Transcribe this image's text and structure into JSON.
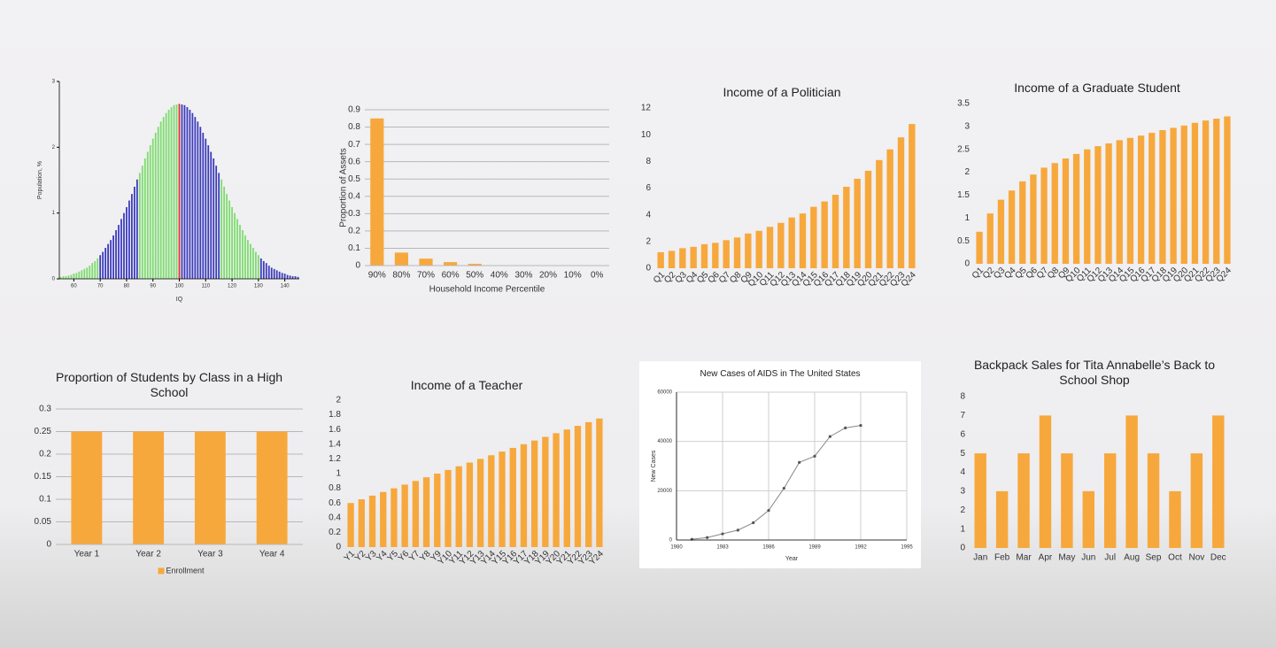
{
  "chart_data": [
    {
      "type": "bar",
      "xlabel": "IQ",
      "ylabel": "Population, %",
      "xlim": [
        54.5,
        145.5
      ],
      "xticks": [
        60,
        70,
        80,
        90,
        100,
        110,
        120,
        130,
        140
      ],
      "ylim": [
        0,
        3
      ],
      "yticks": [
        0,
        1,
        2,
        3
      ],
      "series": [
        {
          "color": "#7ddc6f",
          "x": [
            55,
            56,
            57,
            58,
            59,
            60,
            61,
            62,
            63,
            64,
            65,
            66,
            67,
            68,
            69,
            85,
            86,
            87,
            88,
            89,
            90,
            91,
            92,
            93,
            94,
            95,
            96,
            97,
            98,
            99,
            116,
            117,
            118,
            119,
            120,
            121,
            122,
            123,
            124,
            125,
            126,
            127,
            128,
            129,
            130
          ],
          "values": [
            0.03,
            0.04,
            0.04,
            0.05,
            0.06,
            0.08,
            0.09,
            0.11,
            0.13,
            0.15,
            0.17,
            0.2,
            0.24,
            0.27,
            0.31,
            1.61,
            1.72,
            1.83,
            1.93,
            2.03,
            2.13,
            2.22,
            2.31,
            2.39,
            2.46,
            2.52,
            2.57,
            2.61,
            2.64,
            2.65,
            1.51,
            1.4,
            1.29,
            1.19,
            1.09,
            1.0,
            0.91,
            0.82,
            0.74,
            0.66,
            0.59,
            0.53,
            0.47,
            0.41,
            0.36
          ]
        },
        {
          "color": "#3b3bbd",
          "x": [
            70,
            71,
            72,
            73,
            74,
            75,
            76,
            77,
            78,
            79,
            80,
            81,
            82,
            83,
            84,
            101,
            102,
            103,
            104,
            105,
            106,
            107,
            108,
            109,
            110,
            111,
            112,
            113,
            114,
            115,
            131,
            132,
            133,
            134,
            135,
            136,
            137,
            138,
            139,
            140,
            141,
            142,
            143,
            144,
            145
          ],
          "values": [
            0.36,
            0.41,
            0.47,
            0.53,
            0.59,
            0.66,
            0.74,
            0.82,
            0.91,
            1.0,
            1.09,
            1.19,
            1.29,
            1.4,
            1.51,
            2.65,
            2.64,
            2.61,
            2.57,
            2.52,
            2.46,
            2.39,
            2.31,
            2.22,
            2.13,
            2.03,
            1.93,
            1.83,
            1.72,
            1.61,
            0.31,
            0.27,
            0.24,
            0.2,
            0.17,
            0.15,
            0.13,
            0.11,
            0.09,
            0.08,
            0.06,
            0.05,
            0.04,
            0.04,
            0.03
          ]
        },
        {
          "color": "#e03030",
          "x": [
            100
          ],
          "values": [
            2.66
          ]
        }
      ]
    },
    {
      "type": "bar",
      "xlabel": "Household Income Percentile",
      "ylabel": "Proportion of Assets",
      "categories": [
        "90%",
        "80%",
        "70%",
        "60%",
        "50%",
        "40%",
        "30%",
        "20%",
        "10%",
        "0%"
      ],
      "values": [
        0.85,
        0.075,
        0.04,
        0.02,
        0.01,
        0,
        0,
        0,
        0,
        0
      ],
      "color": "#f7a83c",
      "ylim": [
        0,
        0.9
      ],
      "yticks": [
        0,
        0.1,
        0.2,
        0.3,
        0.4,
        0.5,
        0.6,
        0.7,
        0.8,
        0.9
      ],
      "grid": true
    },
    {
      "type": "bar",
      "title": "Income of a Politician",
      "categories": [
        "Q1",
        "Q2",
        "Q3",
        "Q4",
        "Q5",
        "Q6",
        "Q7",
        "Q8",
        "Q9",
        "Q10",
        "Q11",
        "Q12",
        "Q13",
        "Q14",
        "Q15",
        "Q16",
        "Q17",
        "Q18",
        "Q19",
        "Q20",
        "Q21",
        "Q22",
        "Q23",
        "Q24"
      ],
      "values": [
        1.2,
        1.3,
        1.5,
        1.6,
        1.8,
        1.9,
        2.1,
        2.3,
        2.6,
        2.8,
        3.1,
        3.4,
        3.8,
        4.1,
        4.6,
        5.0,
        5.5,
        6.1,
        6.7,
        7.3,
        8.1,
        8.9,
        9.8,
        10.8
      ],
      "color": "#f7a83c",
      "ylim": [
        0,
        12
      ],
      "yticks": [
        0,
        2,
        4,
        6,
        8,
        10,
        12
      ],
      "grid": false
    },
    {
      "type": "bar",
      "title": "Income of a Graduate Student",
      "categories": [
        "Q1",
        "Q2",
        "Q3",
        "Q4",
        "Q5",
        "Q6",
        "Q7",
        "Q8",
        "Q9",
        "Q10",
        "Q11",
        "Q12",
        "Q13",
        "Q14",
        "Q15",
        "Q16",
        "Q17",
        "Q18",
        "Q19",
        "Q20",
        "Q21",
        "Q22",
        "Q23",
        "Q24"
      ],
      "values": [
        0.7,
        1.1,
        1.4,
        1.6,
        1.8,
        1.95,
        2.1,
        2.2,
        2.3,
        2.4,
        2.5,
        2.57,
        2.63,
        2.7,
        2.75,
        2.8,
        2.86,
        2.92,
        2.97,
        3.02,
        3.08,
        3.13,
        3.17,
        3.22
      ],
      "color": "#f7a83c",
      "ylim": [
        0,
        3.5
      ],
      "yticks": [
        0,
        0.5,
        1,
        1.5,
        2,
        2.5,
        3,
        3.5
      ],
      "grid": false
    },
    {
      "type": "bar",
      "title": "Proportion of Students by Class in a High School",
      "categories": [
        "Year 1",
        "Year 2",
        "Year 3",
        "Year 4"
      ],
      "series": [
        {
          "name": "Enrollment",
          "color": "#f7a83c",
          "values": [
            0.25,
            0.25,
            0.25,
            0.25
          ]
        }
      ],
      "ylim": [
        0,
        0.3
      ],
      "yticks": [
        0,
        0.05,
        0.1,
        0.15,
        0.2,
        0.25,
        0.3
      ],
      "grid": true,
      "legend": "bottom"
    },
    {
      "type": "bar",
      "title": "Income of a Teacher",
      "categories": [
        "Y1",
        "Y2",
        "Y3",
        "Y4",
        "Y5",
        "Y6",
        "Y7",
        "Y8",
        "Y9",
        "Y10",
        "Y11",
        "Y12",
        "Y13",
        "Y14",
        "Y15",
        "Y16",
        "Y17",
        "Y18",
        "Y19",
        "Y20",
        "Y21",
        "Y22",
        "Y23",
        "Y24"
      ],
      "values": [
        0.6,
        0.65,
        0.7,
        0.75,
        0.8,
        0.85,
        0.9,
        0.95,
        1.0,
        1.05,
        1.1,
        1.15,
        1.2,
        1.25,
        1.3,
        1.35,
        1.4,
        1.45,
        1.5,
        1.55,
        1.6,
        1.65,
        1.7,
        1.75
      ],
      "color": "#f7a83c",
      "ylim": [
        0,
        2
      ],
      "yticks": [
        0,
        0.2,
        0.4,
        0.6,
        0.8,
        1,
        1.2,
        1.4,
        1.6,
        1.8,
        2
      ],
      "grid": false
    },
    {
      "type": "line",
      "title": "New Cases of AIDS in The United States",
      "xlabel": "Year",
      "ylabel": "New Cases",
      "x": [
        1981,
        1982,
        1983,
        1984,
        1985,
        1986,
        1987,
        1988,
        1989,
        1990,
        1991,
        1992
      ],
      "values": [
        300,
        1000,
        2500,
        4000,
        7000,
        12000,
        21000,
        31500,
        34000,
        42000,
        45500,
        46500
      ],
      "color": "#888888",
      "xlim": [
        1980,
        1995
      ],
      "xticks": [
        1980,
        1983,
        1986,
        1989,
        1992,
        1995
      ],
      "ylim": [
        0,
        60000
      ],
      "yticks": [
        0,
        20000,
        40000,
        60000
      ],
      "grid": true
    },
    {
      "type": "bar",
      "title": "Backpack Sales for Tita Annabelle’s Back to School Shop",
      "categories": [
        "Jan",
        "Feb",
        "Mar",
        "Apr",
        "May",
        "Jun",
        "Jul",
        "Aug",
        "Sep",
        "Oct",
        "Nov",
        "Dec"
      ],
      "values": [
        5,
        3,
        5,
        7,
        5,
        3,
        5,
        7,
        5,
        3,
        5,
        7
      ],
      "color": "#f7a83c",
      "ylim": [
        0,
        8
      ],
      "yticks": [
        0,
        1,
        2,
        3,
        4,
        5,
        6,
        7,
        8
      ],
      "grid": false
    }
  ]
}
